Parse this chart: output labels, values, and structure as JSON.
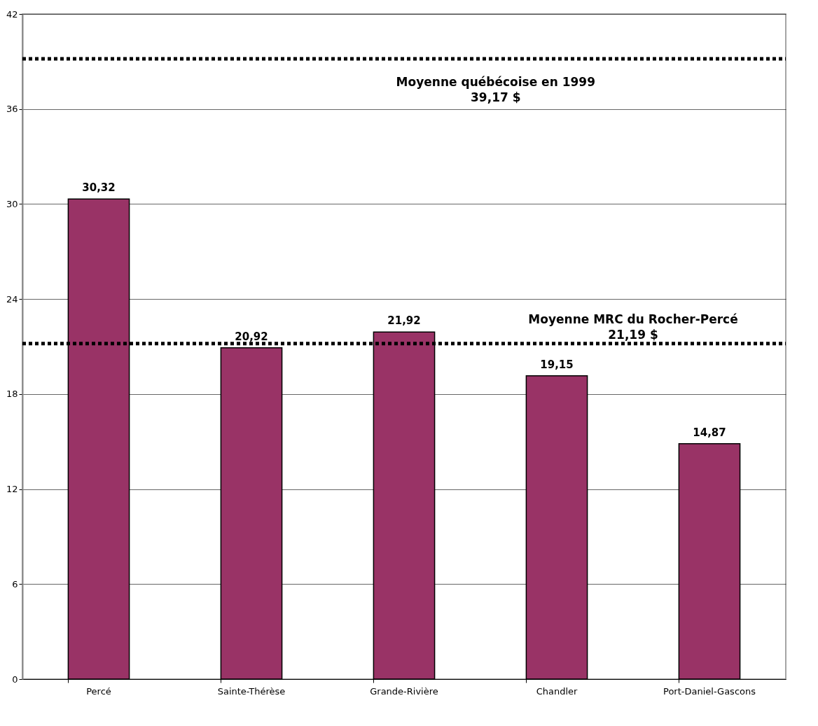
{
  "chart_data": {
    "type": "bar",
    "categories": [
      "Percé",
      "Sainte-Thérèse",
      "Grande-Rivière",
      "Chandler",
      "Port-Daniel-Gascons"
    ],
    "values": [
      30.32,
      20.92,
      21.92,
      19.15,
      14.87
    ],
    "value_labels": [
      "30,32",
      "20,92",
      "21,92",
      "19,15",
      "14,87"
    ],
    "color": "#993366",
    "ylim": [
      0,
      42
    ],
    "yticks": [
      0,
      6,
      12,
      18,
      24,
      30,
      36,
      42
    ],
    "grid": "y",
    "ref_lines": [
      {
        "axis": "y",
        "value": 21.19,
        "label": "Moyenne MRC du Rocher-Percé\n21,19 $",
        "color": "#000000",
        "line_style": "dotted"
      },
      {
        "axis": "y",
        "value": 39.17,
        "label": "Moyenne québécoise en 1999\n39,17 $",
        "color": "#000000",
        "line_style": "dotted"
      }
    ]
  }
}
